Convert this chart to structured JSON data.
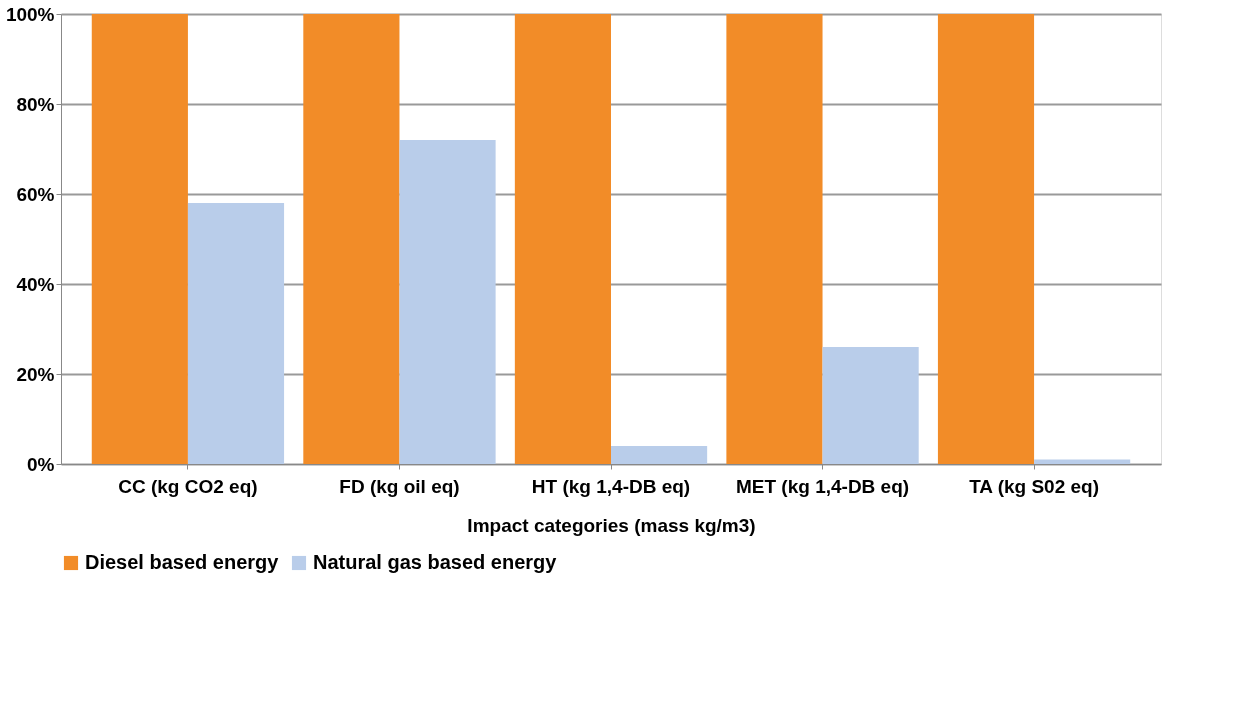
{
  "chart_data": {
    "type": "bar",
    "xlabel": "Impact categories (mass kg/m3)",
    "categories": [
      "CC (kg CO2 eq)",
      "FD (kg oil eq)",
      "HT (kg 1,4-DB eq)",
      "MET (kg 1,4-DB eq)",
      "TA (kg S02 eq)"
    ],
    "series": [
      {
        "name": "Diesel based energy",
        "color": "#f28c28",
        "values": [
          100,
          100,
          100,
          100,
          100
        ]
      },
      {
        "name": "Natural gas based energy",
        "color": "#b9cdea",
        "values": [
          58,
          72,
          4,
          26,
          1
        ]
      }
    ],
    "ylim": [
      0,
      100
    ],
    "yticks": [
      {
        "value": 0,
        "label": "0%"
      },
      {
        "value": 20,
        "label": "20%"
      },
      {
        "value": 40,
        "label": "40%"
      },
      {
        "value": 60,
        "label": "60%"
      },
      {
        "value": 80,
        "label": "80%"
      },
      {
        "value": 100,
        "label": "100%"
      }
    ],
    "grid": "y",
    "legend": "bottom"
  }
}
